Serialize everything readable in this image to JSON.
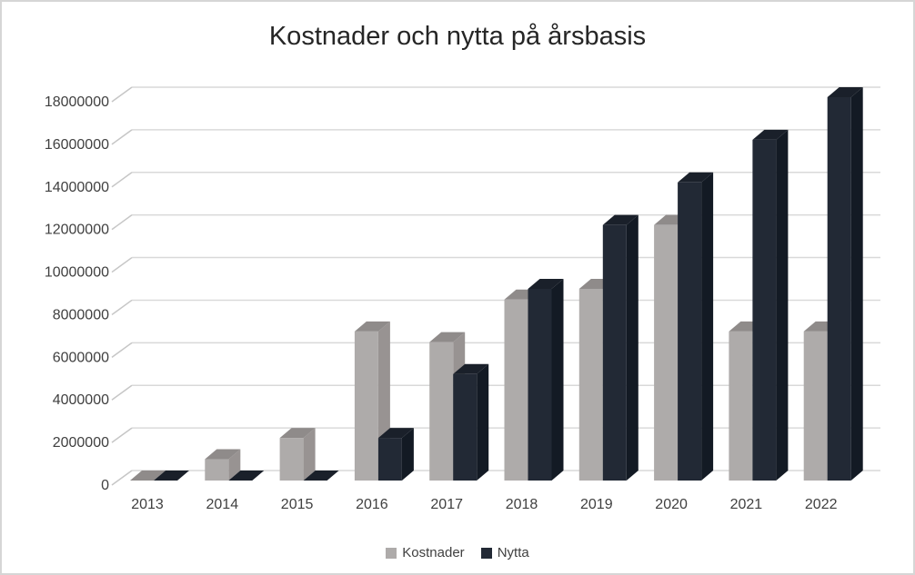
{
  "chart_data": {
    "type": "bar",
    "style": "3d-clustered-column",
    "title": "Kostnader och nytta på årsbasis",
    "categories": [
      "2013",
      "2014",
      "2015",
      "2016",
      "2017",
      "2018",
      "2019",
      "2020",
      "2021",
      "2022"
    ],
    "series": [
      {
        "name": "Kostnader",
        "color": "#AEABAA",
        "top_color": "#8F8B8A",
        "side_color": "#98. 9392",
        "values": [
          0,
          1000000,
          2000000,
          7000000,
          6500000,
          8500000,
          9000000,
          12000000,
          7000000,
          7000000
        ]
      },
      {
        "name": "Nytta",
        "color": "#222935",
        "top_color": "#1A202A",
        "side_color": "#131A24",
        "values": [
          0,
          0,
          0,
          2000000,
          5000000,
          9000000,
          12000000,
          14000000,
          16000000,
          18000000
        ]
      }
    ],
    "xlabel": "",
    "ylabel": "",
    "ylim": [
      0,
      18000000
    ],
    "y_tick_step": 2000000,
    "y_ticks": [
      "0",
      "2000000",
      "4000000",
      "6000000",
      "8000000",
      "10000000",
      "12000000",
      "14000000",
      "16000000",
      "18000000"
    ],
    "grid": true,
    "legend_position": "bottom",
    "gridline_color": "#D9D9D9",
    "tick_line_color": "#C6C6C6",
    "axis_text_color": "#404040",
    "title_color": "#262626"
  }
}
